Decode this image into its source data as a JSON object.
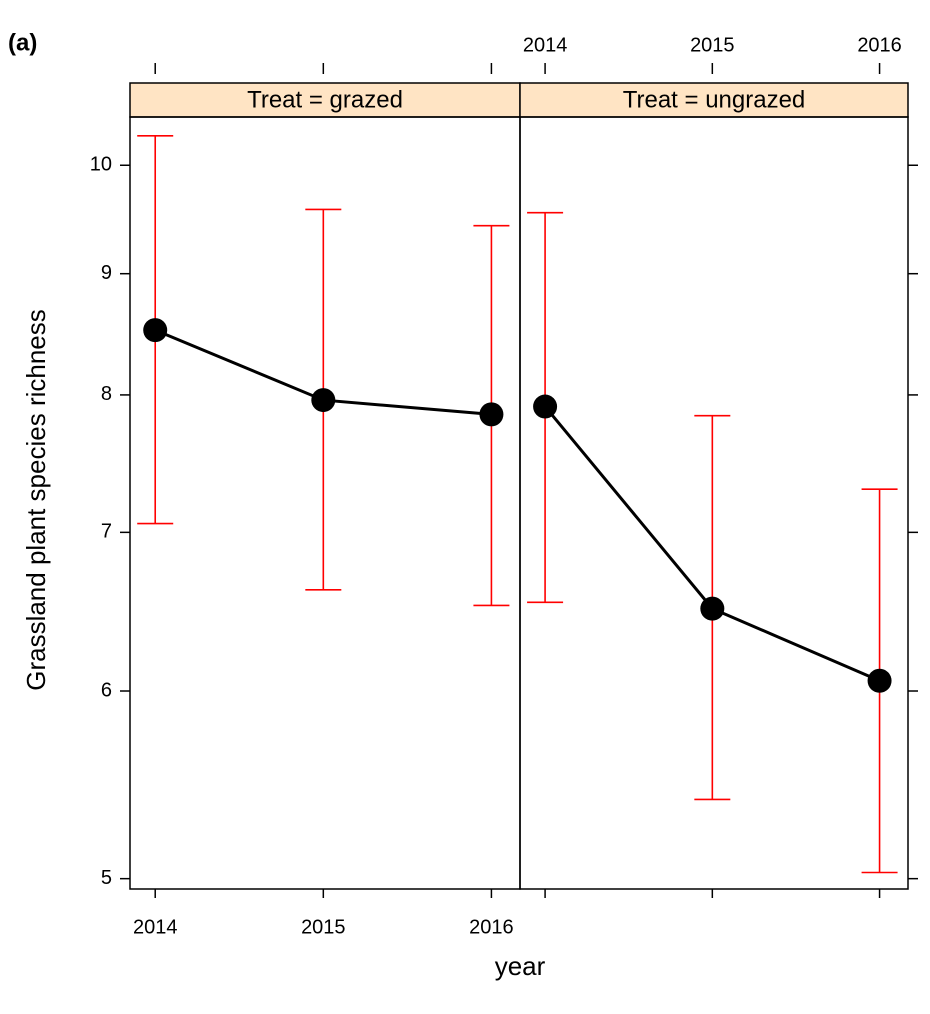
{
  "panel_label": "(a)",
  "x_label": "year",
  "y_label": "Grassland plant species richness",
  "chart_data": [
    {
      "type": "line",
      "title": "Treat = grazed",
      "strip_color": "#ffe4c4",
      "x": [
        2014,
        2015,
        2016
      ],
      "xlim": [
        2013.85,
        2016.17
      ],
      "xticks": [
        2014,
        2015,
        2016
      ],
      "x_tick_labels": "bottom",
      "ylim": [
        4.95,
        10.48
      ],
      "yticks": [
        5,
        6,
        7,
        8,
        9,
        10
      ],
      "y_scale": "log",
      "y_axis": "left",
      "y_tick_labels": true,
      "series": [
        {
          "color": "#000000",
          "error_color": "#ff0000",
          "values": [
            8.52,
            7.96,
            7.85
          ],
          "lower": [
            7.06,
            6.62,
            6.52
          ],
          "upper": [
            10.29,
            9.58,
            9.43
          ]
        }
      ]
    },
    {
      "type": "line",
      "title": "Treat = ungrazed",
      "strip_color": "#ffe4c4",
      "x": [
        2014,
        2015,
        2016
      ],
      "xlim": [
        2013.85,
        2016.17
      ],
      "xticks": [
        2014,
        2015,
        2016
      ],
      "x_tick_labels": "top",
      "ylim": [
        4.95,
        10.48
      ],
      "yticks": [
        5,
        6,
        7,
        8,
        9,
        10
      ],
      "y_scale": "log",
      "y_axis": "right",
      "y_tick_labels": false,
      "series": [
        {
          "color": "#000000",
          "error_color": "#ff0000",
          "values": [
            7.91,
            6.5,
            6.06
          ],
          "lower": [
            6.54,
            5.4,
            5.03
          ],
          "upper": [
            9.55,
            7.84,
            7.3
          ]
        }
      ]
    }
  ]
}
